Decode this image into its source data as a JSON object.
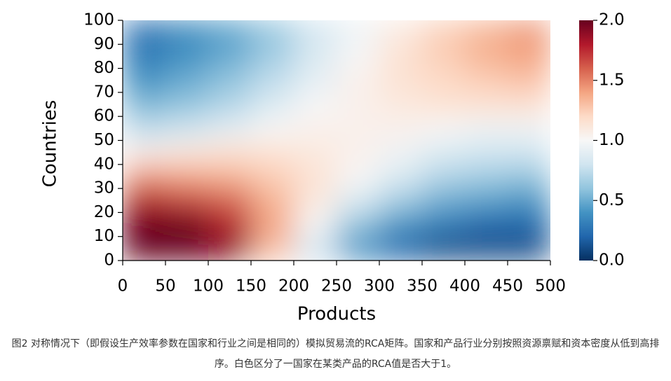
{
  "chart_data": {
    "type": "heatmap",
    "xlabel": "Products",
    "ylabel": "Countries",
    "xlim": [
      0,
      500
    ],
    "ylim": [
      0,
      100
    ],
    "xticks": [
      0,
      50,
      100,
      150,
      200,
      250,
      300,
      350,
      400,
      450,
      500
    ],
    "yticks": [
      0,
      10,
      20,
      30,
      40,
      50,
      60,
      70,
      80,
      90,
      100
    ],
    "values": [
      [
        2.0,
        2.0,
        1.9,
        1.3,
        0.8,
        0.4,
        0.2,
        0.1,
        0.1,
        0.1
      ],
      [
        2.0,
        2.0,
        1.8,
        1.4,
        1.0,
        0.6,
        0.4,
        0.3,
        0.2,
        0.2
      ],
      [
        1.8,
        1.7,
        1.6,
        1.35,
        1.1,
        0.85,
        0.65,
        0.5,
        0.45,
        0.4
      ],
      [
        1.45,
        1.4,
        1.35,
        1.25,
        1.15,
        1.0,
        0.85,
        0.7,
        0.65,
        0.6
      ],
      [
        1.05,
        1.1,
        1.15,
        1.15,
        1.1,
        1.05,
        0.95,
        0.85,
        0.8,
        0.8
      ],
      [
        0.75,
        0.8,
        0.9,
        1.0,
        1.05,
        1.05,
        1.05,
        1.0,
        0.95,
        0.95
      ],
      [
        0.55,
        0.6,
        0.7,
        0.85,
        1.0,
        1.05,
        1.1,
        1.15,
        1.15,
        1.15
      ],
      [
        0.4,
        0.5,
        0.6,
        0.75,
        0.9,
        1.05,
        1.15,
        1.2,
        1.25,
        1.3
      ],
      [
        0.3,
        0.4,
        0.5,
        0.65,
        0.85,
        1.0,
        1.15,
        1.25,
        1.35,
        1.4
      ],
      [
        0.25,
        0.35,
        0.45,
        0.6,
        0.8,
        0.95,
        1.1,
        1.25,
        1.35,
        1.45
      ]
    ],
    "colormap": [
      "#053061",
      "#2166ac",
      "#4393c3",
      "#92c5de",
      "#d1e5f0",
      "#f7f7f7",
      "#fddbc7",
      "#f4a582",
      "#d6604d",
      "#b2182b",
      "#67001f"
    ],
    "colorbar": {
      "lim": [
        0,
        2
      ],
      "ticks": [
        {
          "value": 0,
          "label": "0.0"
        },
        {
          "value": 0.5,
          "label": "0.5"
        },
        {
          "value": 1,
          "label": "1.0"
        },
        {
          "value": 1.5,
          "label": "1.5"
        },
        {
          "value": 2,
          "label": "2.0"
        }
      ]
    }
  },
  "caption": "图2 对称情况下（即假设生产效率参数在国家和行业之间是相同的）模拟贸易流的RCA矩阵。国家和产品行业分别按照资源禀赋和资本密度从低到高排序。白色区分了一国家在某类产品的RCA值是否大于1。"
}
